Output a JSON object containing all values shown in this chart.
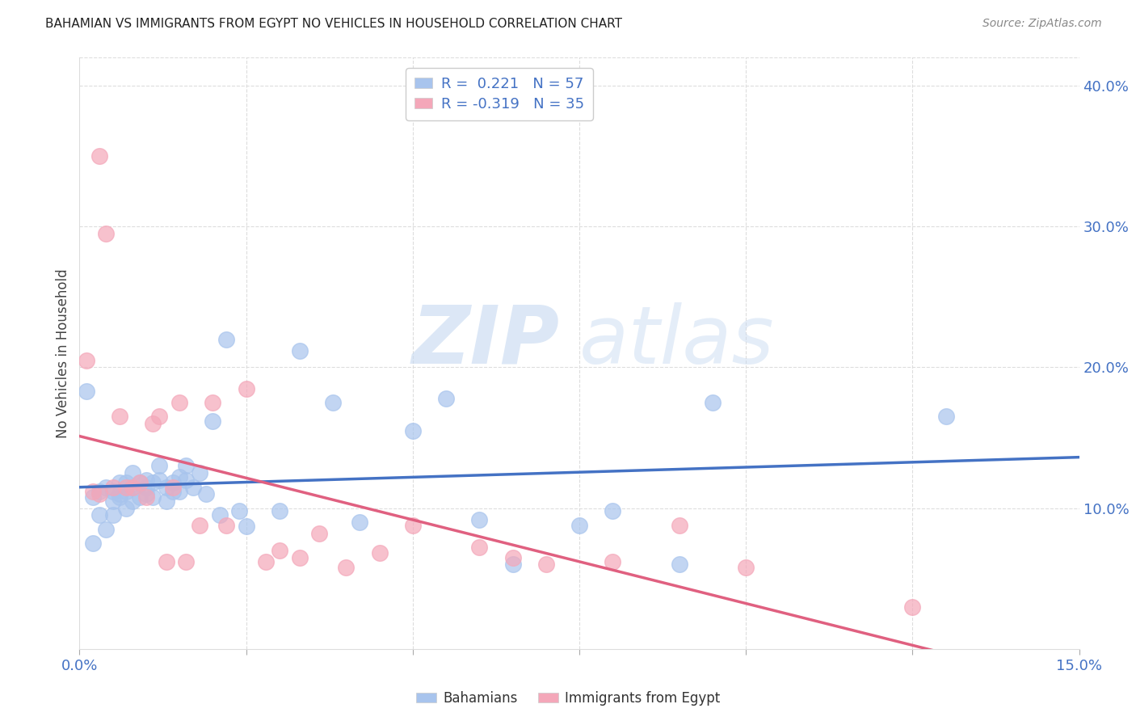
{
  "title": "BAHAMIAN VS IMMIGRANTS FROM EGYPT NO VEHICLES IN HOUSEHOLD CORRELATION CHART",
  "source": "Source: ZipAtlas.com",
  "ylabel": "No Vehicles in Household",
  "x_min": 0.0,
  "x_max": 0.15,
  "y_min": 0.0,
  "y_max": 0.42,
  "x_ticks": [
    0.0,
    0.025,
    0.05,
    0.075,
    0.1,
    0.125,
    0.15
  ],
  "y_ticks_right": [
    0.1,
    0.2,
    0.3,
    0.4
  ],
  "y_tick_labels_right": [
    "10.0%",
    "20.0%",
    "30.0%",
    "40.0%"
  ],
  "blue_color": "#a8c4ed",
  "blue_line_color": "#4472c4",
  "pink_color": "#f4a7b9",
  "pink_line_color": "#e06080",
  "blue_R": 0.221,
  "blue_N": 57,
  "pink_R": -0.319,
  "pink_N": 35,
  "blue_scatter_x": [
    0.001,
    0.002,
    0.002,
    0.003,
    0.003,
    0.004,
    0.004,
    0.005,
    0.005,
    0.005,
    0.006,
    0.006,
    0.006,
    0.007,
    0.007,
    0.007,
    0.008,
    0.008,
    0.008,
    0.009,
    0.009,
    0.01,
    0.01,
    0.01,
    0.011,
    0.011,
    0.012,
    0.012,
    0.013,
    0.013,
    0.014,
    0.014,
    0.015,
    0.015,
    0.016,
    0.016,
    0.017,
    0.018,
    0.019,
    0.02,
    0.021,
    0.022,
    0.024,
    0.025,
    0.03,
    0.033,
    0.038,
    0.042,
    0.05,
    0.055,
    0.06,
    0.065,
    0.075,
    0.08,
    0.09,
    0.095,
    0.13
  ],
  "blue_scatter_y": [
    0.183,
    0.108,
    0.075,
    0.112,
    0.095,
    0.115,
    0.085,
    0.112,
    0.095,
    0.105,
    0.11,
    0.118,
    0.108,
    0.1,
    0.112,
    0.118,
    0.105,
    0.115,
    0.125,
    0.108,
    0.118,
    0.11,
    0.12,
    0.115,
    0.118,
    0.108,
    0.12,
    0.13,
    0.115,
    0.105,
    0.118,
    0.112,
    0.122,
    0.112,
    0.12,
    0.13,
    0.115,
    0.125,
    0.11,
    0.162,
    0.095,
    0.22,
    0.098,
    0.087,
    0.098,
    0.212,
    0.175,
    0.09,
    0.155,
    0.178,
    0.092,
    0.06,
    0.088,
    0.098,
    0.06,
    0.175,
    0.165
  ],
  "pink_scatter_x": [
    0.001,
    0.002,
    0.003,
    0.003,
    0.004,
    0.005,
    0.006,
    0.007,
    0.008,
    0.009,
    0.01,
    0.011,
    0.012,
    0.013,
    0.014,
    0.015,
    0.016,
    0.018,
    0.02,
    0.022,
    0.025,
    0.028,
    0.03,
    0.033,
    0.036,
    0.04,
    0.045,
    0.05,
    0.06,
    0.065,
    0.07,
    0.08,
    0.09,
    0.1,
    0.125
  ],
  "pink_scatter_y": [
    0.205,
    0.112,
    0.35,
    0.11,
    0.295,
    0.115,
    0.165,
    0.115,
    0.115,
    0.118,
    0.108,
    0.16,
    0.165,
    0.062,
    0.115,
    0.175,
    0.062,
    0.088,
    0.175,
    0.088,
    0.185,
    0.062,
    0.07,
    0.065,
    0.082,
    0.058,
    0.068,
    0.088,
    0.072,
    0.065,
    0.06,
    0.062,
    0.088,
    0.058,
    0.03
  ],
  "legend_label_blue": "Bahamians",
  "legend_label_pink": "Immigrants from Egypt",
  "watermark_zip": "ZIP",
  "watermark_atlas": "atlas",
  "background_color": "#ffffff",
  "grid_color": "#dddddd",
  "title_color": "#222222",
  "label_color": "#4472c4",
  "axis_label_color": "#444444"
}
